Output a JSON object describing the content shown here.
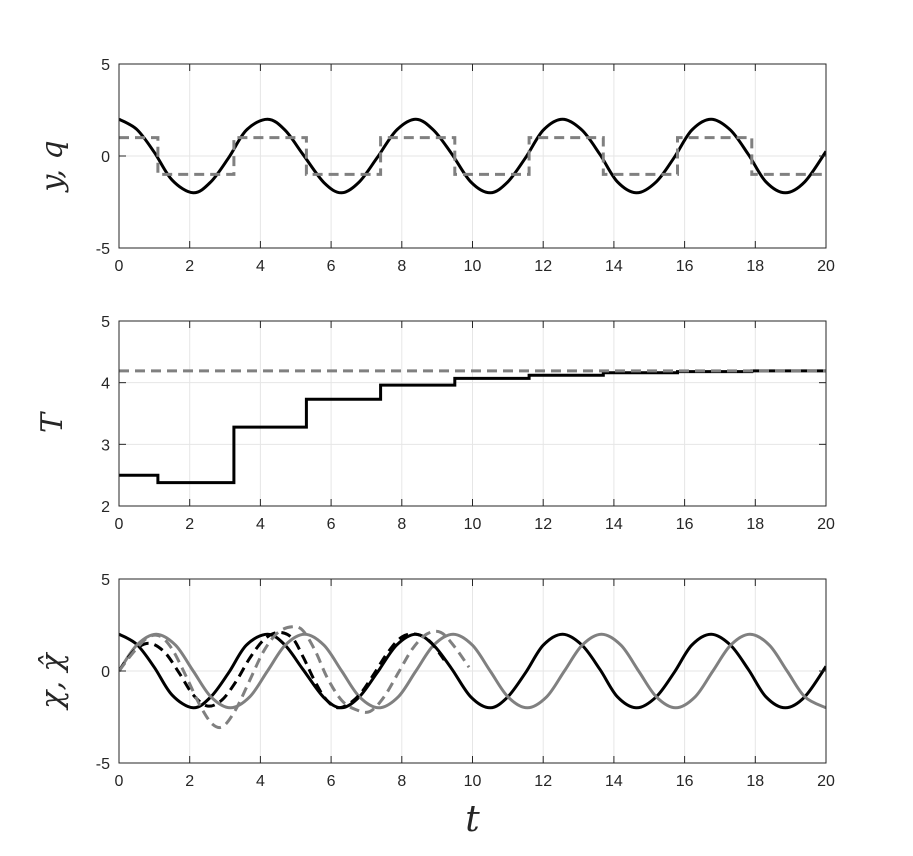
{
  "chart_data": [
    {
      "type": "line",
      "ylabel": "y, q",
      "xlim": [
        0,
        20
      ],
      "ylim": [
        -5,
        5
      ],
      "xticks": [
        "0",
        "2",
        "4",
        "6",
        "8",
        "10",
        "12",
        "14",
        "16",
        "18",
        "20"
      ],
      "yticks": [
        "-5",
        "0",
        "5"
      ],
      "grid": true,
      "series": [
        {
          "id": "y",
          "style": "solid",
          "color": "#000000",
          "x": [
            0,
            0.5,
            1.0,
            1.5,
            2.1,
            2.6,
            3.1,
            3.6,
            4.2,
            4.7,
            5.2,
            5.8,
            6.3,
            6.8,
            7.3,
            7.85,
            8.4,
            8.9,
            9.4,
            9.95,
            10.5,
            11.0,
            11.5,
            12.0,
            12.55,
            13.1,
            13.6,
            14.1,
            14.65,
            15.2,
            15.7,
            16.2,
            16.75,
            17.3,
            17.8,
            18.3,
            18.85,
            19.4,
            20.0
          ],
          "y": [
            2,
            1.45,
            0.2,
            -1.3,
            -2,
            -1.4,
            -0.1,
            1.4,
            2,
            1.4,
            0.1,
            -1.45,
            -2,
            -1.4,
            -0.1,
            1.4,
            2,
            1.4,
            0.15,
            -1.4,
            -2,
            -1.4,
            -0.1,
            1.4,
            2,
            1.4,
            0.1,
            -1.4,
            -2,
            -1.4,
            -0.1,
            1.4,
            2,
            1.4,
            0.1,
            -1.4,
            -2,
            -1.4,
            0.25
          ]
        },
        {
          "id": "q",
          "style": "dashed",
          "color": "#808080",
          "x": [
            0,
            1.1,
            1.1,
            3.25,
            3.25,
            5.3,
            5.3,
            7.4,
            7.4,
            9.5,
            9.5,
            11.6,
            11.6,
            13.7,
            13.7,
            15.8,
            15.8,
            17.9,
            17.9,
            20
          ],
          "y": [
            1,
            1,
            -1,
            -1,
            1,
            1,
            -1,
            -1,
            1,
            1,
            -1,
            -1,
            1,
            1,
            -1,
            -1,
            1,
            1,
            -1,
            -1
          ]
        }
      ]
    },
    {
      "type": "line",
      "ylabel": "T",
      "xlim": [
        0,
        20
      ],
      "ylim": [
        2,
        5
      ],
      "xticks": [
        "0",
        "2",
        "4",
        "6",
        "8",
        "10",
        "12",
        "14",
        "16",
        "18",
        "20"
      ],
      "yticks": [
        "2",
        "3",
        "4",
        "5"
      ],
      "grid": true,
      "series": [
        {
          "id": "T",
          "style": "solid",
          "color": "#000000",
          "x": [
            0,
            1.1,
            1.1,
            3.25,
            3.25,
            5.3,
            5.3,
            7.4,
            7.4,
            9.5,
            9.5,
            11.6,
            11.6,
            13.7,
            13.7,
            15.8,
            15.8,
            17.9,
            17.9,
            20
          ],
          "y": [
            2.5,
            2.5,
            2.38,
            2.38,
            3.28,
            3.28,
            3.73,
            3.73,
            3.96,
            3.96,
            4.07,
            4.07,
            4.12,
            4.12,
            4.16,
            4.16,
            4.18,
            4.18,
            4.19,
            4.19
          ]
        },
        {
          "id": "T_ref",
          "style": "dashed",
          "color": "#808080",
          "x": [
            0,
            20
          ],
          "y": [
            4.19,
            4.19
          ]
        }
      ]
    },
    {
      "type": "line",
      "ylabel": "χ, χ̂",
      "xlabel": "t",
      "xlim": [
        0,
        20
      ],
      "ylim": [
        -5,
        5
      ],
      "xticks": [
        "0",
        "2",
        "4",
        "6",
        "8",
        "10",
        "12",
        "14",
        "16",
        "18",
        "20"
      ],
      "yticks": [
        "-5",
        "0",
        "5"
      ],
      "grid": true,
      "series": [
        {
          "id": "chi_1",
          "style": "solid",
          "color": "#000000",
          "x": [
            0,
            0.5,
            1.0,
            1.5,
            2.1,
            2.6,
            3.1,
            3.6,
            4.2,
            4.7,
            5.2,
            5.8,
            6.3,
            6.8,
            7.3,
            7.85,
            8.4,
            8.9,
            9.4,
            9.95,
            10.5,
            11.0,
            11.5,
            12.0,
            12.55,
            13.1,
            13.6,
            14.1,
            14.65,
            15.2,
            15.7,
            16.2,
            16.75,
            17.3,
            17.8,
            18.3,
            18.85,
            19.4,
            20.0
          ],
          "y": [
            2,
            1.45,
            0.2,
            -1.3,
            -2,
            -1.4,
            -0.1,
            1.4,
            2,
            1.4,
            0.1,
            -1.45,
            -2,
            -1.4,
            -0.1,
            1.4,
            2,
            1.4,
            0.15,
            -1.4,
            -2,
            -1.4,
            -0.1,
            1.4,
            2,
            1.4,
            0.1,
            -1.4,
            -2,
            -1.4,
            -0.1,
            1.4,
            2,
            1.4,
            0.1,
            -1.4,
            -2,
            -1.4,
            0.25
          ]
        },
        {
          "id": "chi_2",
          "style": "solid",
          "color": "#808080",
          "x": [
            0,
            0.5,
            1.05,
            1.6,
            2.1,
            2.6,
            3.15,
            3.7,
            4.2,
            4.7,
            5.25,
            5.8,
            6.3,
            6.8,
            7.35,
            7.9,
            8.4,
            8.9,
            9.45,
            10.0,
            10.5,
            11.0,
            11.55,
            12.1,
            12.6,
            13.1,
            13.65,
            14.2,
            14.7,
            15.2,
            15.75,
            16.3,
            16.8,
            17.3,
            17.85,
            18.4,
            18.9,
            19.4,
            20.0
          ],
          "y": [
            0,
            1.4,
            2,
            1.4,
            0,
            -1.4,
            -2,
            -1.4,
            0,
            1.4,
            2,
            1.4,
            0,
            -1.4,
            -2,
            -1.4,
            0,
            1.4,
            2,
            1.4,
            0,
            -1.4,
            -2,
            -1.4,
            0,
            1.4,
            2,
            1.4,
            0,
            -1.4,
            -2,
            -1.4,
            0,
            1.4,
            2,
            1.4,
            0,
            -1.4,
            -2
          ]
        },
        {
          "id": "chi_hat_1",
          "style": "dashed",
          "color": "#000000",
          "x": [
            0,
            0.25,
            0.55,
            0.9,
            1.3,
            1.7,
            2.1,
            2.5,
            2.9,
            3.3,
            3.7,
            4.1,
            4.5,
            4.9,
            5.2,
            5.5,
            5.8,
            6.1,
            6.4,
            6.8,
            7.2,
            7.6,
            8.0,
            8.4,
            8.8,
            9.2
          ],
          "y": [
            0,
            0.7,
            1.3,
            1.5,
            1.0,
            -0.1,
            -1.3,
            -1.9,
            -1.6,
            -0.6,
            0.7,
            1.7,
            2.1,
            1.8,
            0.8,
            -0.4,
            -1.4,
            -1.95,
            -1.9,
            -1.3,
            -0.2,
            1.0,
            1.85,
            2.0,
            1.6,
            0.6
          ]
        },
        {
          "id": "chi_hat_2",
          "style": "dashed",
          "color": "#808080",
          "x": [
            0,
            0.4,
            0.8,
            1.15,
            1.5,
            1.9,
            2.3,
            2.65,
            2.95,
            3.3,
            3.7,
            4.1,
            4.5,
            4.9,
            5.2,
            5.55,
            5.9,
            6.3,
            6.7,
            7.1,
            7.5,
            7.9,
            8.3,
            8.7,
            9.1,
            9.5,
            9.9
          ],
          "y": [
            0,
            1.0,
            1.8,
            1.9,
            1.2,
            -0.3,
            -1.9,
            -2.9,
            -3.0,
            -2.1,
            -0.5,
            1.1,
            2.1,
            2.4,
            2.2,
            1.1,
            -0.4,
            -1.6,
            -2.1,
            -2.2,
            -1.4,
            -0.1,
            1.2,
            2.0,
            2.1,
            1.3,
            0.2
          ]
        }
      ]
    }
  ]
}
